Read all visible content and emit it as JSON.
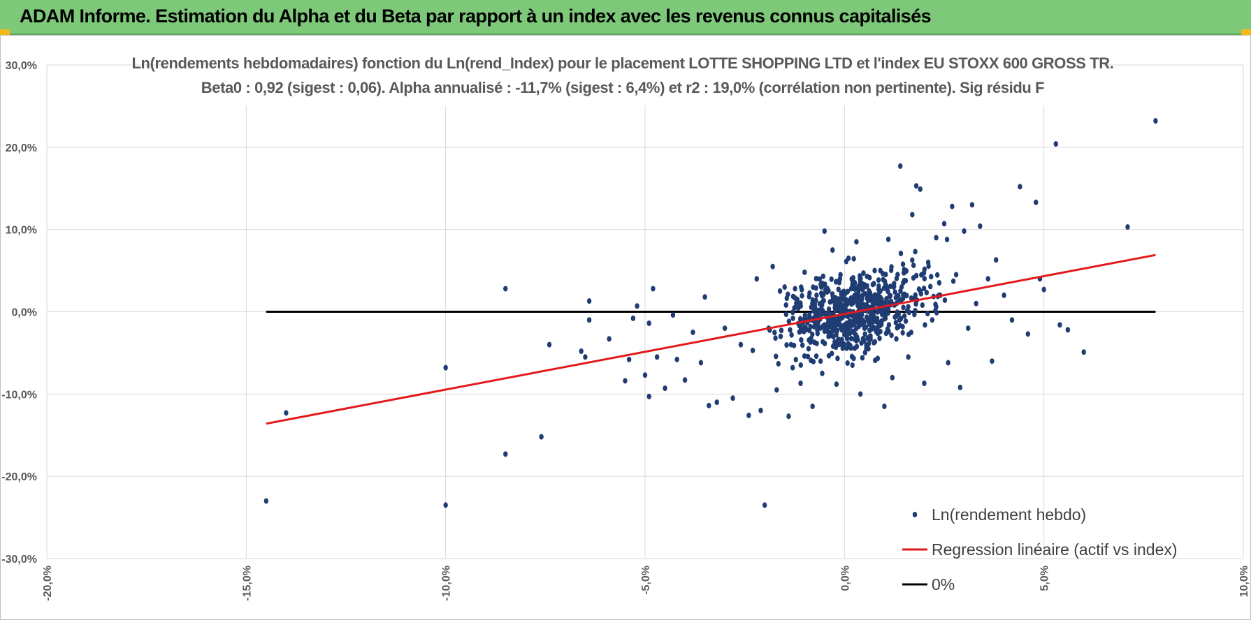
{
  "header": {
    "title": "ADAM Informe. Estimation du Alpha et du Beta par rapport à un index avec les revenus connus capitalisés"
  },
  "chart_data": {
    "type": "scatter",
    "title_line1": "Ln(rendements hebdomadaires) fonction du Ln(rend_Index) pour le placement LOTTE SHOPPING LTD et l'index EU STOXX 600 GROSS TR.",
    "title_line2": "Beta0 : 0,92 (sigest : 0,06). Alpha annualisé : -11,7% (sigest : 6,4%) et r2 : 19,0% (corrélation non pertinente). Sig résidu F",
    "xlim": [
      -0.2,
      0.1
    ],
    "ylim": [
      -0.3,
      0.3
    ],
    "x_ticks": [
      "-20,0%",
      "-15,0%",
      "-10,0%",
      "-5,0%",
      "0,0%",
      "5,0%",
      "10,0%"
    ],
    "y_ticks": [
      "-30,0%",
      "-20,0%",
      "-10,0%",
      "0,0%",
      "10,0%",
      "20,0%",
      "30,0%"
    ],
    "grid": true,
    "legend_position": "bottom-right",
    "series": [
      {
        "name": "Ln(rendement hebdo)",
        "kind": "scatter",
        "color": "#1f3d73",
        "points": [
          [
            -0.145,
            -0.23
          ],
          [
            -0.14,
            -0.123
          ],
          [
            -0.1,
            -0.068
          ],
          [
            -0.1,
            -0.235
          ],
          [
            -0.085,
            0.028
          ],
          [
            -0.085,
            -0.173
          ],
          [
            -0.076,
            -0.152
          ],
          [
            -0.074,
            -0.04
          ],
          [
            -0.066,
            -0.048
          ],
          [
            -0.065,
            -0.055
          ],
          [
            -0.064,
            0.013
          ],
          [
            -0.064,
            -0.01
          ],
          [
            -0.059,
            -0.033
          ],
          [
            -0.055,
            -0.084
          ],
          [
            -0.054,
            -0.058
          ],
          [
            -0.053,
            -0.008
          ],
          [
            -0.052,
            0.007
          ],
          [
            -0.05,
            -0.077
          ],
          [
            -0.049,
            -0.103
          ],
          [
            -0.049,
            -0.014
          ],
          [
            -0.048,
            0.028
          ],
          [
            -0.047,
            -0.055
          ],
          [
            -0.045,
            -0.093
          ],
          [
            -0.043,
            -0.004
          ],
          [
            -0.042,
            -0.058
          ],
          [
            -0.04,
            -0.083
          ],
          [
            -0.038,
            -0.025
          ],
          [
            -0.036,
            -0.062
          ],
          [
            -0.035,
            0.018
          ],
          [
            -0.034,
            -0.114
          ],
          [
            -0.032,
            -0.11
          ],
          [
            -0.03,
            -0.02
          ],
          [
            -0.028,
            -0.105
          ],
          [
            -0.026,
            -0.04
          ],
          [
            -0.024,
            -0.126
          ],
          [
            -0.023,
            -0.047
          ],
          [
            -0.022,
            0.04
          ],
          [
            -0.021,
            -0.12
          ],
          [
            -0.02,
            -0.235
          ],
          [
            -0.019,
            -0.02
          ],
          [
            -0.018,
            0.055
          ],
          [
            -0.017,
            -0.095
          ],
          [
            -0.016,
            -0.03
          ],
          [
            -0.015,
            0.03
          ],
          [
            -0.014,
            -0.127
          ],
          [
            -0.013,
            -0.068
          ],
          [
            -0.012,
            0.01
          ],
          [
            -0.011,
            -0.087
          ],
          [
            -0.01,
            0.048
          ],
          [
            -0.009,
            -0.045
          ],
          [
            -0.008,
            -0.115
          ],
          [
            -0.007,
            0.02
          ],
          [
            -0.006,
            -0.06
          ],
          [
            -0.005,
            0.098
          ],
          [
            -0.004,
            -0.03
          ],
          [
            -0.003,
            0.075
          ],
          [
            -0.002,
            -0.088
          ],
          [
            -0.001,
            0.045
          ],
          [
            0.0,
            -0.02
          ],
          [
            0.001,
            0.065
          ],
          [
            0.002,
            -0.065
          ],
          [
            0.003,
            0.085
          ],
          [
            0.004,
            -0.1
          ],
          [
            0.005,
            0.03
          ],
          [
            0.006,
            -0.045
          ],
          [
            0.007,
            0.012
          ],
          [
            0.008,
            -0.012
          ],
          [
            0.009,
            0.05
          ],
          [
            0.01,
            -0.115
          ],
          [
            0.011,
            0.088
          ],
          [
            0.012,
            -0.08
          ],
          [
            0.013,
            -0.033
          ],
          [
            0.014,
            0.177
          ],
          [
            0.015,
            0.038
          ],
          [
            0.016,
            -0.055
          ],
          [
            0.017,
            0.118
          ],
          [
            0.018,
            0.153
          ],
          [
            0.019,
            0.149
          ],
          [
            0.02,
            -0.087
          ],
          [
            0.021,
            0.06
          ],
          [
            0.022,
            -0.01
          ],
          [
            0.023,
            0.09
          ],
          [
            0.024,
            0.02
          ],
          [
            0.025,
            0.107
          ],
          [
            0.026,
            -0.062
          ],
          [
            0.027,
            0.128
          ],
          [
            0.028,
            0.045
          ],
          [
            0.029,
            -0.092
          ],
          [
            0.03,
            0.098
          ],
          [
            0.031,
            -0.02
          ],
          [
            0.032,
            0.13
          ],
          [
            0.033,
            0.01
          ],
          [
            0.034,
            0.104
          ],
          [
            0.036,
            0.04
          ],
          [
            0.037,
            -0.06
          ],
          [
            0.038,
            0.063
          ],
          [
            0.04,
            0.02
          ],
          [
            0.042,
            -0.01
          ],
          [
            0.044,
            0.152
          ],
          [
            0.046,
            -0.027
          ],
          [
            0.048,
            0.133
          ],
          [
            0.049,
            0.04
          ],
          [
            0.05,
            0.027
          ],
          [
            0.053,
            0.204
          ],
          [
            0.054,
            -0.016
          ],
          [
            0.056,
            -0.022
          ],
          [
            0.06,
            -0.049
          ],
          [
            0.071,
            0.103
          ],
          [
            0.078,
            0.232
          ]
        ]
      },
      {
        "name": "Regression linéaire (actif vs index)",
        "kind": "line",
        "color": "#e31a1c",
        "from": [
          -0.145,
          -0.136
        ],
        "to": [
          0.078,
          0.069
        ]
      },
      {
        "name": "0%",
        "kind": "line",
        "color": "#000000",
        "from": [
          -0.145,
          0.0
        ],
        "to": [
          0.078,
          0.0
        ]
      }
    ]
  }
}
